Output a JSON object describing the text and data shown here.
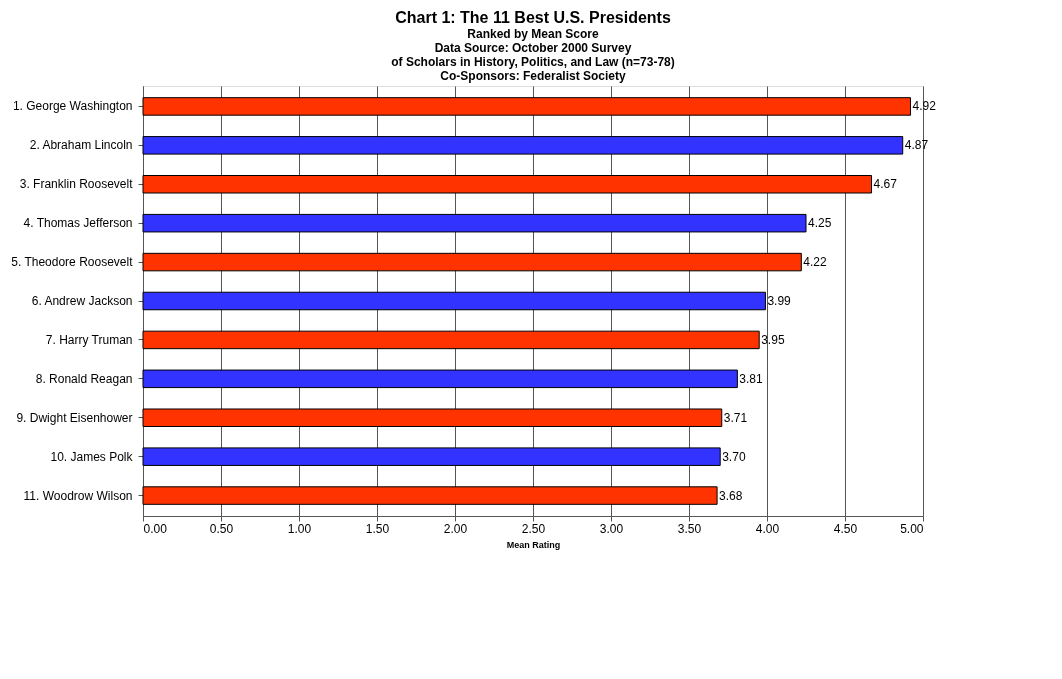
{
  "chart_data": {
    "type": "bar",
    "orientation": "horizontal",
    "title": "Chart 1: The 11 Best U.S. Presidents",
    "subtitle": "Ranked by Mean Score\nData Source: October 2000 Survey\nof Scholars in History, Politics, and Law (n=73-78)\nCo-Sponsors: Federalist Society",
    "xlabel": "Mean Rating",
    "categories": [
      "1. George Washington",
      "2. Abraham Lincoln",
      "3. Franklin Roosevelt",
      "4. Thomas Jefferson",
      "5. Theodore Roosevelt",
      "6. Andrew Jackson",
      "7. Harry Truman",
      "8. Ronald Reagan",
      "9. Dwight Eisenhower",
      "10. James Polk",
      "11. Woodrow Wilson"
    ],
    "values": [
      4.92,
      4.87,
      4.67,
      4.25,
      4.22,
      3.99,
      3.95,
      3.81,
      3.71,
      3.7,
      3.68
    ],
    "colors": [
      "#ff3300",
      "#3333ff",
      "#ff3300",
      "#3333ff",
      "#ff3300",
      "#3333ff",
      "#ff3300",
      "#3333ff",
      "#ff3300",
      "#3333ff",
      "#ff3300"
    ],
    "value_labels": [
      "4.92",
      "4.87",
      "4.67",
      "4.25",
      "4.22",
      "3.99",
      "3.95",
      "3.81",
      "3.71",
      "3.70",
      "3.68"
    ],
    "xlim": [
      0,
      5
    ],
    "xticks": [
      {
        "value": 0,
        "label": "0.00"
      },
      {
        "value": 0.5,
        "label": "0.50"
      },
      {
        "value": 1,
        "label": "1.00"
      },
      {
        "value": 1.5,
        "label": "1.50"
      },
      {
        "value": 2,
        "label": "2.00"
      },
      {
        "value": 2.5,
        "label": "2.50"
      },
      {
        "value": 3,
        "label": "3.00"
      },
      {
        "value": 3.5,
        "label": "3.50"
      },
      {
        "value": 4,
        "label": "4.00"
      },
      {
        "value": 4.5,
        "label": "4.50"
      },
      {
        "value": 5,
        "label": "5.00"
      }
    ],
    "grid": "x"
  }
}
